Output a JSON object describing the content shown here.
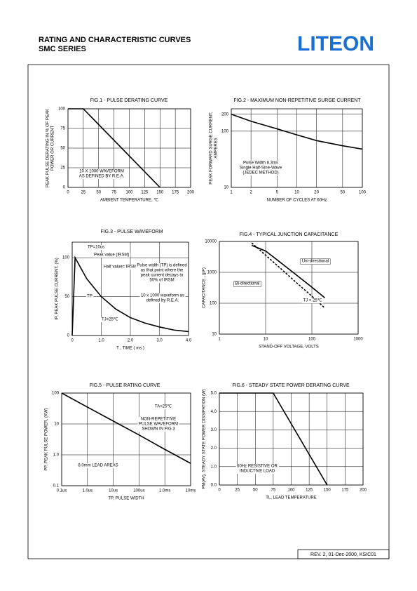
{
  "header": {
    "title": [
      "RATING AND CHARACTERISTIC CURVES",
      "SMC SERIES"
    ],
    "logo": "LITEON"
  },
  "footer": "REV. 2, 01-Dec-2000, KSIC01",
  "chart_data": [
    {
      "type": "line",
      "title": "FIG.1 - PULSE DERATING CURVE",
      "x_label": "AMBIENT TEMPERATURE, ℃",
      "y_label": [
        "PEAK PULSE DERATING IN % OF PEAK",
        "POWER OR CURRENT"
      ],
      "x": [
        0,
        25,
        150
      ],
      "series": [
        {
          "color": "#000000",
          "values": [
            100,
            100,
            0
          ]
        }
      ],
      "xlim": [
        0,
        200
      ],
      "xticks": [
        0,
        25,
        50,
        75,
        100,
        125,
        150,
        175,
        200
      ],
      "ylim": [
        0,
        100
      ],
      "yticks": [
        0,
        25,
        50,
        75,
        100
      ],
      "grid": true,
      "annotations": [
        [
          "10 X 1000 WAVEFORM",
          "AS DEFINED BY R.E.A."
        ]
      ]
    },
    {
      "type": "line",
      "title": "FIG.2 - MAXIMUM NON-REPETITIVE SURGE CURRENT",
      "x_label": "NUMBER OF CYCLES AT 60Hz",
      "y_label": [
        "PEAK FORWARD SURGE CURRENT,",
        "AMPERES"
      ],
      "x": [
        1,
        2,
        5,
        10,
        20,
        50,
        100
      ],
      "series": [
        {
          "color": "#000000",
          "values": [
            200,
            150,
            110,
            86,
            68,
            55,
            48
          ]
        }
      ],
      "xlim": [
        1,
        100
      ],
      "xticks": [
        1,
        2,
        5,
        10,
        20,
        50,
        100
      ],
      "xlog": true,
      "ylim": [
        10,
        250
      ],
      "yticks": [
        10,
        100,
        200
      ],
      "ylog": true,
      "grid": true,
      "annotations": [
        [
          "Pulse Width 8.3ms",
          "Single Half-Sine-Wave",
          "(JEDEC METHOD)"
        ]
      ]
    },
    {
      "type": "line",
      "title": "FIG.3 - PULSE WAVEFORM",
      "x_label": "T , TIME ( ms )",
      "y_label": [
        "IP, PEAK PULSE CURRENT, (%)"
      ],
      "x": [
        0,
        0.1,
        0.5,
        1,
        1.5,
        2,
        2.5,
        3,
        3.5,
        4
      ],
      "series": [
        {
          "color": "#000000",
          "values": [
            0,
            100,
            73,
            50,
            34,
            23,
            16,
            11,
            7,
            5
          ]
        }
      ],
      "xlim": [
        0,
        4
      ],
      "xticks": [
        0,
        {
          "value": 1,
          "label": "1.0"
        },
        {
          "value": 2,
          "label": "2.0"
        },
        {
          "value": 3,
          "label": "3.0"
        },
        {
          "value": 4,
          "label": "4.0"
        }
      ],
      "ylim": [
        0,
        120
      ],
      "yticks": [
        0,
        50,
        100
      ],
      "grid": true,
      "annotations": [
        [
          "TP=10us"
        ],
        [
          "Peak value (IRSM)"
        ],
        [
          "Half value= IRSM/2"
        ],
        [
          "Pulse width (TP) is defined",
          "as that point where the",
          "peak current decays to",
          "50% of IRSM"
        ],
        [
          "10 x 1000 waveform as",
          "defined by R.E.A."
        ],
        [
          "TP"
        ],
        [
          "TJ=25℃"
        ]
      ]
    },
    {
      "type": "line",
      "title": "FIG.4 - TYPICAL JUNCTION CAPACITANCE",
      "x_label": "STAND-OFF VOLTAGE, VOLTS",
      "y_label": [
        "CAPACITANCE , (pF)"
      ],
      "x": [
        5,
        10,
        20,
        50,
        100,
        190
      ],
      "series": [
        {
          "name": "Uni-directional",
          "color": "#000000",
          "values": [
            7500,
            4900,
            2200,
            750,
            330,
            150
          ]
        },
        {
          "name": "Bi-directional",
          "color": "#000000",
          "dash": true,
          "values": [
            9000,
            3600,
            1430,
            420,
            170,
            70
          ]
        }
      ],
      "xlim": [
        1,
        1000
      ],
      "xticks": [
        1,
        10,
        100,
        1000
      ],
      "xlog": true,
      "ylim": [
        10,
        10000
      ],
      "yticks": [
        10,
        100,
        1000,
        10000
      ],
      "ylog": true,
      "grid": true,
      "annotations": [
        [
          "TJ = 25℃"
        ]
      ]
    },
    {
      "type": "line",
      "title": "FIG.5 - PULSE RATING CURVE",
      "x_label": "TP, PULSE WIDTH",
      "y_label": [
        "PP, PEAK PULSE POWER, (KW)"
      ],
      "x": [
        0.1,
        1,
        10,
        100,
        1000,
        10000
      ],
      "series": [
        {
          "color": "#000000",
          "values": [
            100,
            35,
            12.4,
            4.4,
            1.5,
            0.53
          ]
        }
      ],
      "xlim": [
        0.1,
        10000
      ],
      "xticks": [
        {
          "value": 0.1,
          "label": "0.1us"
        },
        {
          "value": 1,
          "label": "1.0us"
        },
        {
          "value": 10,
          "label": "10us"
        },
        {
          "value": 100,
          "label": "100us"
        },
        {
          "value": 1000,
          "label": "1.0ms"
        },
        {
          "value": 10000,
          "label": "10ms"
        }
      ],
      "xlog": true,
      "ylim": [
        0.1,
        100
      ],
      "yticks": [
        0.1,
        {
          "value": 1,
          "label": "1.0"
        },
        10,
        100
      ],
      "ylog": true,
      "grid": true,
      "annotations": [
        [
          "TA=25℃"
        ],
        [
          "NON-REPETITIVE",
          "PULSE WAVEFORM",
          "SHOWN IN FIG.3"
        ],
        [
          "8.0mm LEAD AREAS"
        ]
      ]
    },
    {
      "type": "line",
      "title": "FIG.6 - STEADY STATE POWER DERATING CURVE",
      "x_label": "TL, LEAD TEMPERATURE",
      "y_label": [
        "PM(AV), STEADY STATE POWER DISSIPATION (W)"
      ],
      "x": [
        0,
        75,
        150
      ],
      "series": [
        {
          "color": "#000000",
          "values": [
            5,
            5,
            0
          ]
        }
      ],
      "xlim": [
        0,
        200
      ],
      "xticks": [
        0,
        25,
        50,
        75,
        100,
        125,
        150,
        175,
        200
      ],
      "ylim": [
        0,
        5
      ],
      "yticks": [
        {
          "value": 0,
          "label": "0.0"
        },
        {
          "value": 1,
          "label": "1.0"
        },
        {
          "value": 2,
          "label": "2.0"
        },
        {
          "value": 3,
          "label": "3.0"
        },
        {
          "value": 4,
          "label": "4.0"
        },
        {
          "value": 5,
          "label": "5.0"
        }
      ],
      "grid": true,
      "annotations": [
        [
          "60Hz RESISTIVE OR",
          "INDUCTIVE LOAD"
        ]
      ]
    }
  ]
}
